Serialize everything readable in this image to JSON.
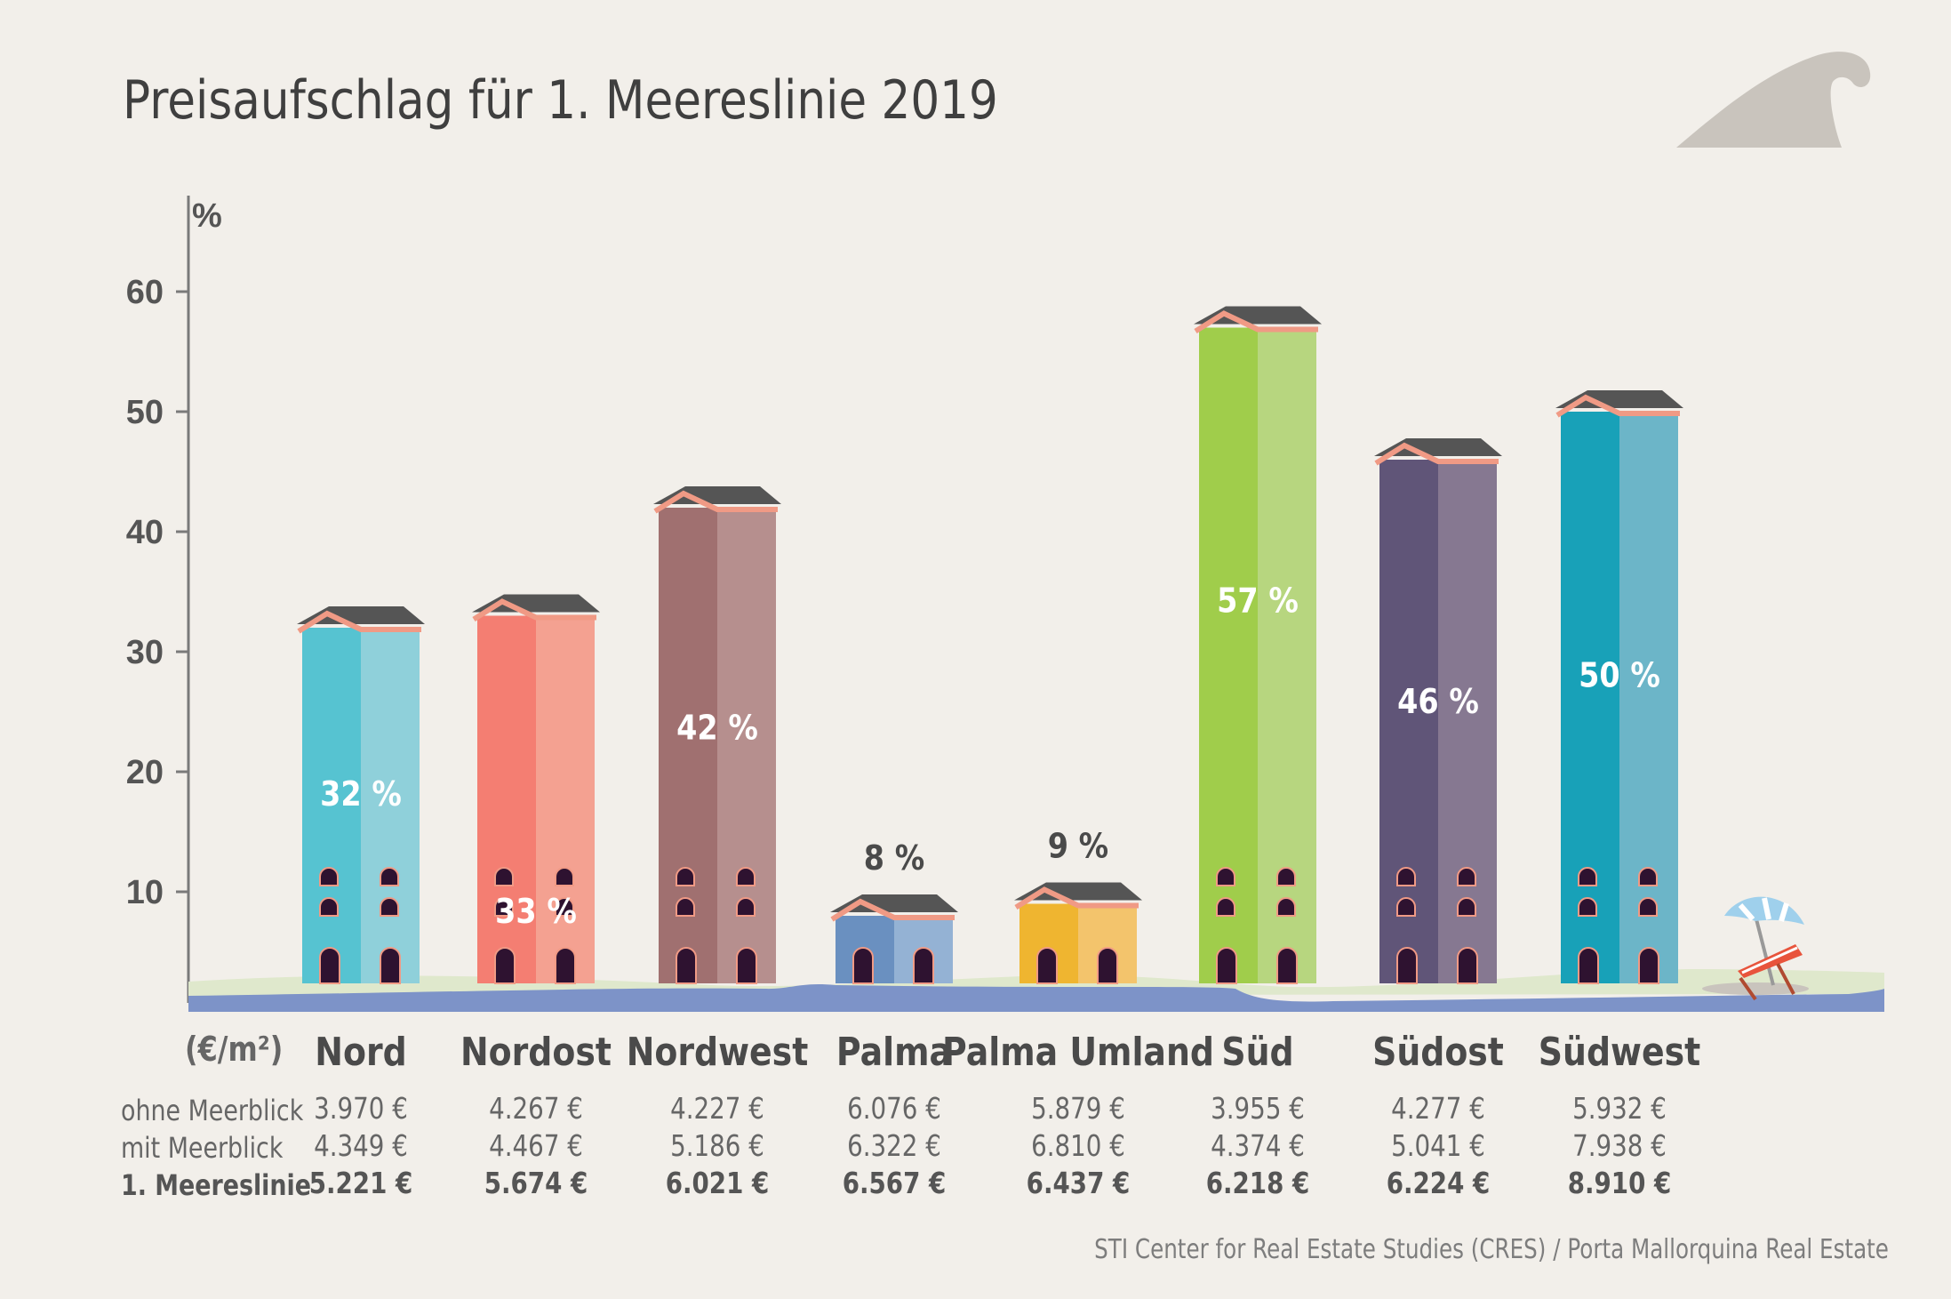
{
  "title": "Preisaufschlag für 1. Meereslinie 2019",
  "source": "STI Center for Real Estate Studies (CRES) / Porta Mallorquina Real Estate",
  "unit_label": "(€/m²)",
  "row_labels": [
    "ohne Meerblick",
    "mit Meerblick",
    "1. Meereslinie"
  ],
  "colors": {
    "background": "#f2efea",
    "roof": "#555555",
    "roof_trim": "#f09a85",
    "window": "#2e1230",
    "ground": "#dfe8cc",
    "sea": "#7d93c8"
  },
  "chart_data": {
    "type": "bar",
    "title": "Preisaufschlag für 1. Meereslinie 2019",
    "ylabel": "%",
    "ylim": [
      0,
      65
    ],
    "yticks": [
      10,
      20,
      30,
      40,
      50,
      60
    ],
    "categories": [
      "Nord",
      "Nordost",
      "Nordwest",
      "Palma",
      "Palma Umland",
      "Süd",
      "Südost",
      "Südwest"
    ],
    "values": [
      32,
      33,
      42,
      8,
      9,
      57,
      46,
      50
    ],
    "value_labels": [
      "32 %",
      "33 %",
      "42 %",
      "8 %",
      "9 %",
      "57 %",
      "46 %",
      "50 %"
    ],
    "bar_colors": [
      [
        "#56c3d1",
        "#8fd0da"
      ],
      [
        "#f47e72",
        "#f4a191"
      ],
      [
        "#a07070",
        "#b68f8e"
      ],
      [
        "#6a90c0",
        "#94b2d4"
      ],
      [
        "#efb530",
        "#f3c46c"
      ],
      [
        "#a0cd4b",
        "#b7d67f"
      ],
      [
        "#605578",
        "#867891"
      ],
      [
        "#18a1b8",
        "#6cb5c8"
      ]
    ],
    "prices": {
      "ohne Meerblick": [
        "3.970 €",
        "4.267 €",
        "4.227 €",
        "6.076 €",
        "5.879 €",
        "3.955 €",
        "4.277 €",
        "5.932 €"
      ],
      "mit Meerblick": [
        "4.349 €",
        "4.467 €",
        "5.186 €",
        "6.322 €",
        "6.810 €",
        "4.374 €",
        "5.041 €",
        "7.938 €"
      ],
      "1. Meereslinie": [
        "5.221 €",
        "5.674 €",
        "6.021 €",
        "6.567 €",
        "6.437 €",
        "6.218 €",
        "6.224 €",
        "8.910 €"
      ]
    }
  }
}
